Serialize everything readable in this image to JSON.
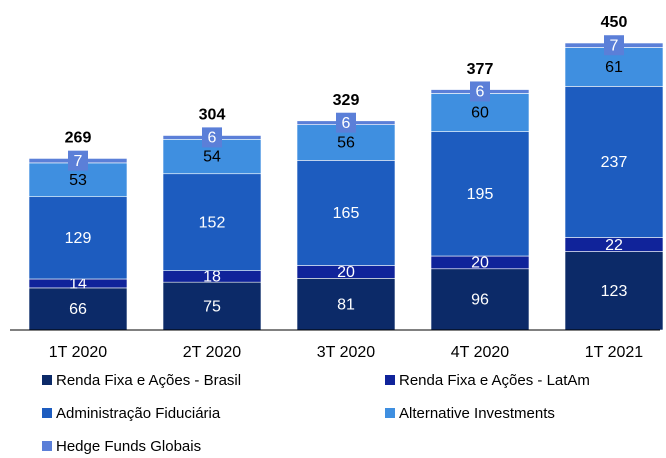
{
  "chart_data": {
    "type": "stacked_bar",
    "categories": [
      "1T 2020",
      "2T 2020",
      "3T 2020",
      "4T 2020",
      "1T 2021"
    ],
    "series": [
      {
        "name": "Renda Fixa e Ações - Brasil",
        "color": "#0c2a68",
        "label_color": "#ffffff",
        "values": [
          66,
          75,
          81,
          96,
          123
        ]
      },
      {
        "name": "Renda Fixa e Ações - LatAm",
        "color": "#10239a",
        "label_color": "#ffffff",
        "values": [
          14,
          18,
          20,
          20,
          22
        ]
      },
      {
        "name": "Administração Fiduciária",
        "color": "#1d5cbf",
        "label_color": "#ffffff",
        "values": [
          129,
          152,
          165,
          195,
          237
        ]
      },
      {
        "name": "Alternative Investments",
        "color": "#3f8fe0",
        "label_color": "#000000",
        "values": [
          53,
          54,
          56,
          60,
          61
        ]
      },
      {
        "name": "Hedge Funds Globais",
        "color": "#5b7fd8",
        "label_color": "#ffffff",
        "values": [
          7,
          6,
          6,
          6,
          7
        ]
      }
    ],
    "totals": [
      269,
      304,
      329,
      377,
      450
    ]
  }
}
